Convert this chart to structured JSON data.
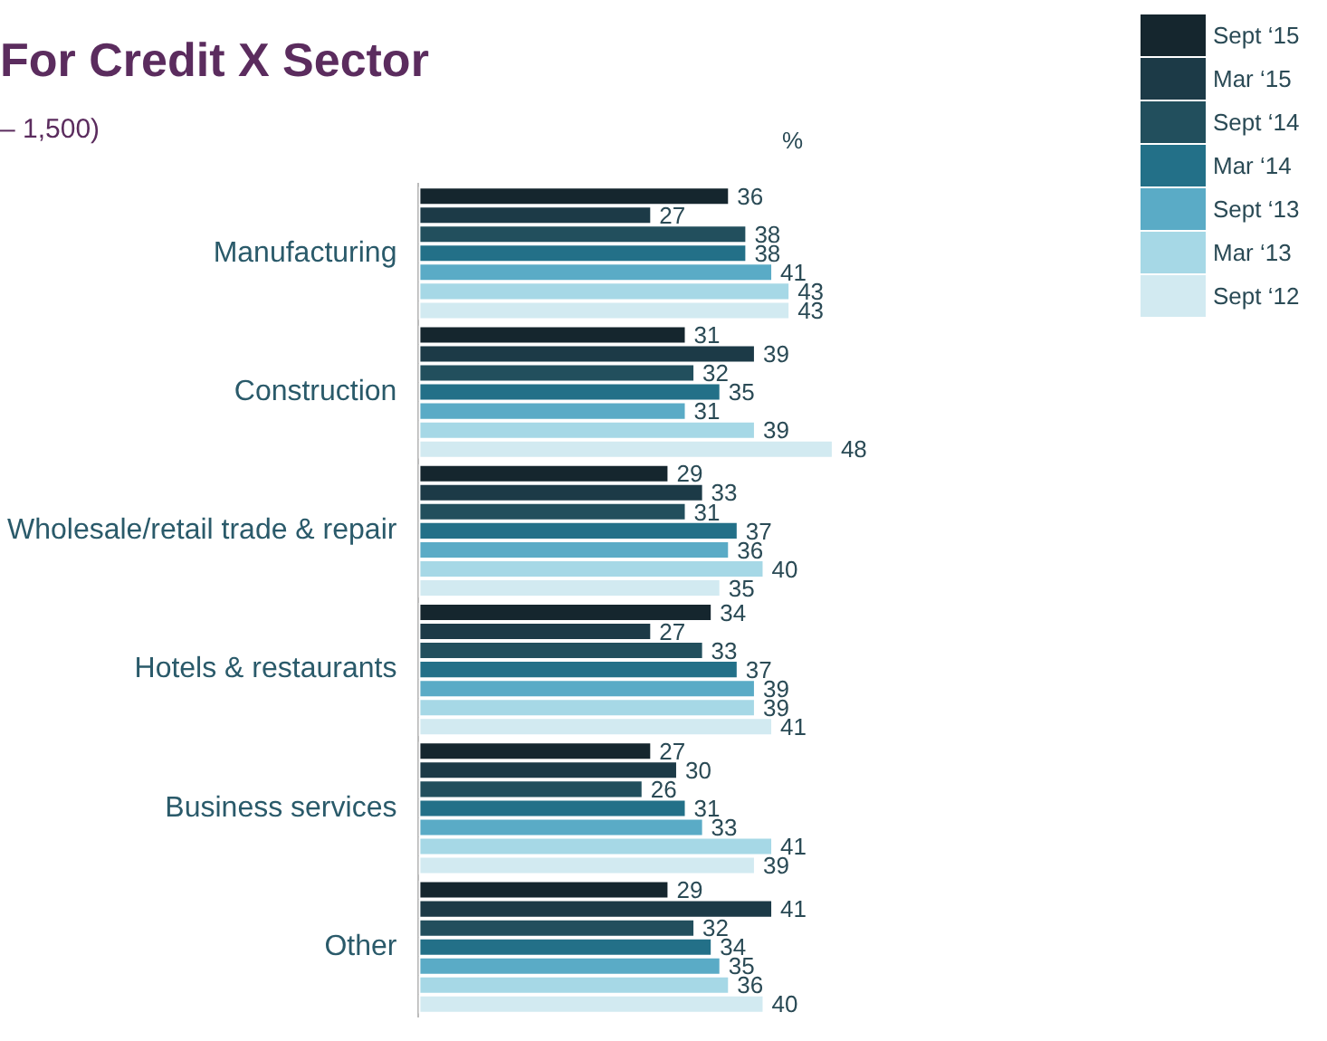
{
  "chart_data": {
    "type": "bar",
    "orientation": "horizontal",
    "title": "For Credit X Sector",
    "subtitle": "– 1,500)",
    "annotations": [
      "%"
    ],
    "categories": [
      "Manufacturing",
      "Construction",
      "Wholesale/retail trade & repair",
      "Hotels & restaurants",
      "Business services",
      "Other"
    ],
    "series": [
      {
        "name": "Sept ‘15",
        "color": "#15262e",
        "values": [
          36,
          31,
          29,
          34,
          27,
          29
        ]
      },
      {
        "name": "Mar ‘15",
        "color": "#1c3a47",
        "values": [
          27,
          39,
          33,
          27,
          30,
          41
        ]
      },
      {
        "name": "Sept ‘14",
        "color": "#224f5d",
        "values": [
          38,
          32,
          31,
          33,
          26,
          32
        ]
      },
      {
        "name": "Mar ‘14",
        "color": "#237088",
        "values": [
          38,
          35,
          37,
          37,
          31,
          34
        ]
      },
      {
        "name": "Sept ‘13",
        "color": "#5aabc6",
        "values": [
          41,
          31,
          36,
          39,
          33,
          35
        ]
      },
      {
        "name": "Mar ‘13",
        "color": "#a6d8e6",
        "values": [
          43,
          39,
          40,
          39,
          41,
          36
        ]
      },
      {
        "name": "Sept ‘12",
        "color": "#d2eaf1",
        "values": [
          43,
          48,
          35,
          41,
          39,
          40
        ]
      }
    ],
    "data_labels": true,
    "legend": "top right"
  }
}
